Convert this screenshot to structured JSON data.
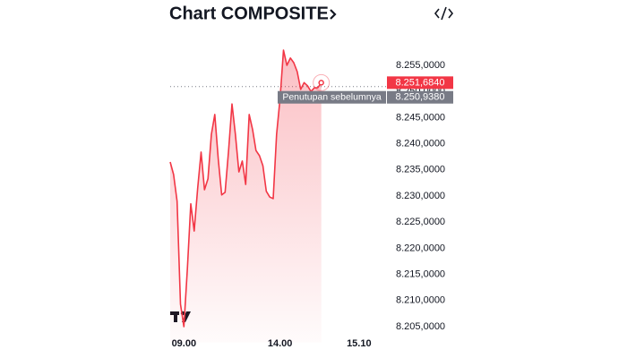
{
  "chart_data": {
    "type": "area",
    "title": "Chart COMPOSITE",
    "color": "#f23645",
    "x": [
      0,
      1,
      2,
      3,
      4,
      5,
      6,
      7,
      8,
      9,
      10,
      11,
      12,
      13,
      14,
      15,
      16,
      17,
      18,
      19,
      20,
      21,
      22,
      23,
      24,
      25,
      26,
      27,
      28,
      29,
      30,
      31,
      32,
      33,
      34,
      35,
      36,
      37,
      38,
      39,
      40,
      41,
      42,
      43,
      44
    ],
    "values": [
      8236.5,
      8234.1,
      8229.0,
      8209.3,
      8205.0,
      8216.1,
      8228.5,
      8223.3,
      8231.5,
      8238.4,
      8231.2,
      8233.3,
      8241.8,
      8245.6,
      8237.0,
      8230.2,
      8230.7,
      8238.7,
      8247.6,
      8241.8,
      8234.6,
      8236.7,
      8232.2,
      8245.6,
      8242.7,
      8238.7,
      8237.7,
      8235.8,
      8230.9,
      8229.8,
      8229.5,
      8241.8,
      8248.7,
      8257.9,
      8255.0,
      8256.4,
      8255.5,
      8253.8,
      8250.4,
      8251.7,
      8251.1,
      8250.0,
      8250.7,
      8250.7,
      8251.684
    ],
    "xlim": [
      0,
      60
    ],
    "xticks": [
      {
        "value": 4,
        "label": "09.00"
      },
      {
        "value": 32,
        "label": "14.00"
      },
      {
        "value": 55,
        "label": "15.10"
      }
    ],
    "ylim": [
      8202,
      8260
    ],
    "yticks": [
      {
        "value": 8205,
        "label": "8.205,0000"
      },
      {
        "value": 8210,
        "label": "8.210,0000"
      },
      {
        "value": 8215,
        "label": "8.215,0000"
      },
      {
        "value": 8220,
        "label": "8.220,0000"
      },
      {
        "value": 8225,
        "label": "8.225,0000"
      },
      {
        "value": 8230,
        "label": "8.230,0000"
      },
      {
        "value": 8235,
        "label": "8.235,0000"
      },
      {
        "value": 8240,
        "label": "8.240,0000"
      },
      {
        "value": 8245,
        "label": "8.245,0000"
      },
      {
        "value": 8250,
        "label": "8.250,0000"
      },
      {
        "value": 8255,
        "label": "8.255,0000"
      }
    ],
    "last_price": {
      "value": 8251.684,
      "label": "8.251,6840"
    },
    "previous_close": {
      "value": 8250.938,
      "label": "8.250,9380",
      "name": "Penutupan sebelumnya"
    }
  }
}
